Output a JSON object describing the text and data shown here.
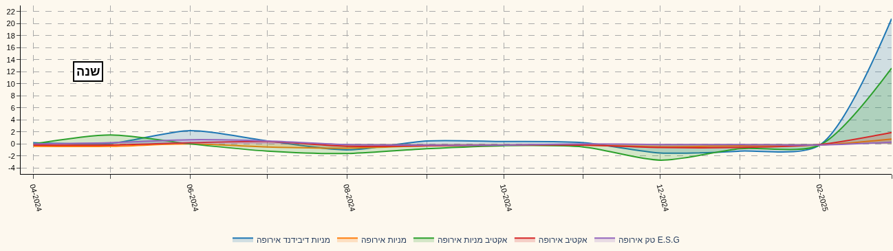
{
  "chart_data": {
    "type": "area",
    "annotations": [
      "שנה"
    ],
    "x": [
      "2024-04-01",
      "2024-05-01",
      "2024-06-01",
      "2024-07-01",
      "2024-08-01",
      "2024-09-01",
      "2024-10-01",
      "2024-11-01",
      "2024-12-01",
      "2025-01-01",
      "2025-02-01",
      "2025-03-01"
    ],
    "series": [
      {
        "name": "מניות דיבידנד אירופה",
        "color": "#1f77b4",
        "values": [
          0.2,
          0.1,
          2.2,
          0.5,
          -1.0,
          0.5,
          0.4,
          0.2,
          -1.5,
          -1.2,
          -0.2,
          20.8
        ]
      },
      {
        "name": "מניות אירופה",
        "color": "#ff7f0e",
        "values": [
          -0.4,
          -0.4,
          0.0,
          -0.5,
          -0.7,
          -0.3,
          -0.2,
          -0.2,
          -0.5,
          -0.3,
          -0.2,
          0.8
        ]
      },
      {
        "name": "אקטיב מניות אירופה",
        "color": "#2ca02c",
        "values": [
          0.0,
          1.5,
          0.0,
          -1.2,
          -1.6,
          -0.8,
          -0.3,
          -0.5,
          -2.7,
          -0.8,
          -0.2,
          12.6
        ]
      },
      {
        "name": "אקטיב אירופה",
        "color": "#d62728",
        "values": [
          -0.2,
          -0.2,
          0.2,
          0.4,
          -0.4,
          -0.3,
          -0.2,
          -0.2,
          -0.6,
          -0.6,
          -0.1,
          1.9
        ]
      },
      {
        "name": "טק אירופה E.S.G",
        "color": "#9467bd",
        "values": [
          0.0,
          0.2,
          0.7,
          0.5,
          -0.1,
          -0.2,
          -0.2,
          0.0,
          -0.1,
          -0.1,
          -0.2,
          0.3
        ]
      }
    ],
    "xlim": [
      "2024-03-27",
      "2025-03-01"
    ],
    "xticks": [
      {
        "value": "2024-04-01",
        "label": "04-2024"
      },
      {
        "value": "2024-05-01",
        "label": null
      },
      {
        "value": "2024-06-01",
        "label": "06-2024"
      },
      {
        "value": "2024-07-01",
        "label": null
      },
      {
        "value": "2024-08-01",
        "label": "08-2024"
      },
      {
        "value": "2024-09-01",
        "label": null
      },
      {
        "value": "2024-10-01",
        "label": "10-2024"
      },
      {
        "value": "2024-11-01",
        "label": null
      },
      {
        "value": "2024-12-01",
        "label": "12-2024"
      },
      {
        "value": "2025-01-01",
        "label": null
      },
      {
        "value": "2025-02-01",
        "label": "02-2025"
      },
      {
        "value": "2025-03-01",
        "label": null
      }
    ],
    "ylim": [
      -5,
      23
    ],
    "yticks": [
      -4,
      -2,
      0,
      2,
      4,
      6,
      8,
      10,
      12,
      14,
      16,
      18,
      20,
      22
    ],
    "grid": true,
    "legend": "bottom",
    "line_style": "solid"
  }
}
